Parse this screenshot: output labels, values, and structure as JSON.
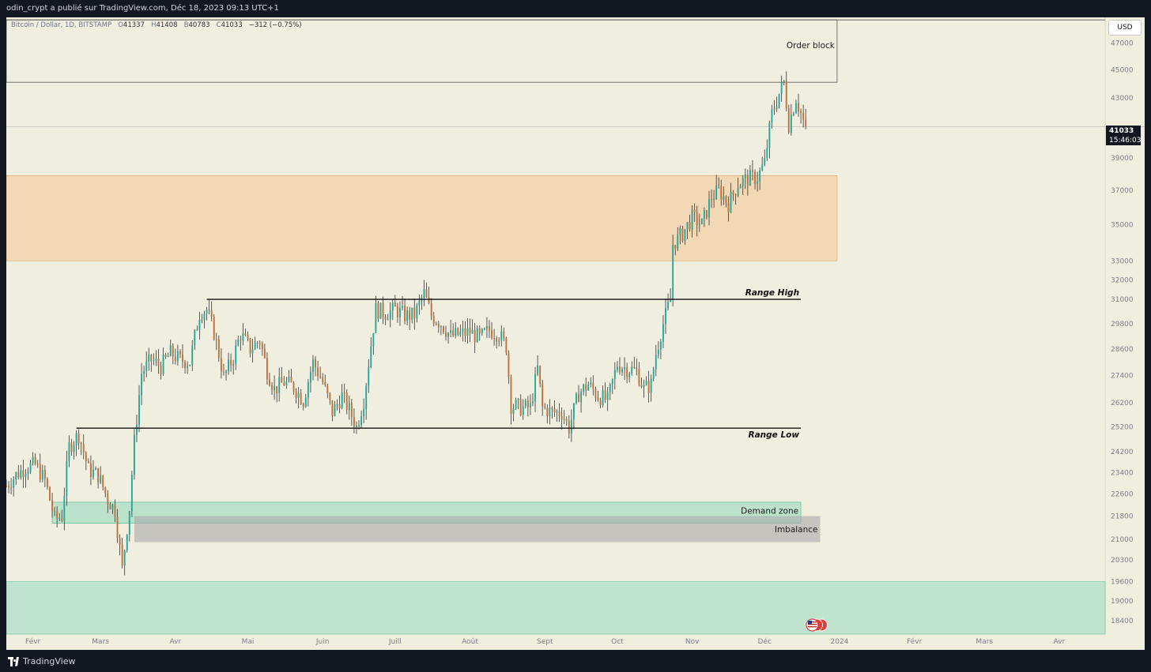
{
  "header": {
    "published_by": "odin_crypt a publié sur TradingView.com, Déc 18, 2023 09:13 UTC+1"
  },
  "footer": {
    "brand": "TradingView"
  },
  "instrument": {
    "name": "Bitcoin / Dollar, 1D, BITSTAMP",
    "o_label": "O",
    "o": "41337",
    "h_label": "H",
    "h": "41408",
    "b_label": "B",
    "b": "40783",
    "c_label": "C",
    "c": "41033",
    "change": "−312 (−0.75%)"
  },
  "currency": "USD",
  "last_price": {
    "price": "41033",
    "countdown": "15:46:03"
  },
  "colors": {
    "bull": "#26a69a",
    "bear": "#c0703a",
    "background": "#f0eedf",
    "order_zone": "#f5c99a",
    "demand_zone": "#9fdcc1",
    "imbalance": "#a8a8a8"
  },
  "chart_data": {
    "type": "candlestick",
    "y_scale": "log",
    "ylim": [
      18000,
      49000
    ],
    "y_ticks": [
      47000,
      45000,
      43000,
      39000,
      37000,
      35000,
      33000,
      32000,
      31000,
      29800,
      28600,
      27400,
      26200,
      25200,
      24200,
      23400,
      22600,
      21800,
      21000,
      20300,
      19600,
      19000,
      18400
    ],
    "y_tick_labels": [
      "47000",
      "45000",
      "43000",
      "39000",
      "37000",
      "35000",
      "33000",
      "32000",
      "31000",
      "29800",
      "28600",
      "27400",
      "26200",
      "25200",
      "24200",
      "23400",
      "22600",
      "21800",
      "21000",
      "20300",
      "19600",
      "19000",
      "18400"
    ],
    "x_range": [
      "2023-01-21",
      "2024-04-20"
    ],
    "x_ticks": [
      {
        "date": "2023-02-01",
        "label": "Févr"
      },
      {
        "date": "2023-03-01",
        "label": "Mars"
      },
      {
        "date": "2023-04-01",
        "label": "Avr"
      },
      {
        "date": "2023-05-01",
        "label": "Mai"
      },
      {
        "date": "2023-06-01",
        "label": "Juin"
      },
      {
        "date": "2023-07-01",
        "label": "Juill"
      },
      {
        "date": "2023-08-01",
        "label": "Août"
      },
      {
        "date": "2023-09-01",
        "label": "Sept"
      },
      {
        "date": "2023-10-01",
        "label": "Oct"
      },
      {
        "date": "2023-11-01",
        "label": "Nov"
      },
      {
        "date": "2023-12-01",
        "label": "Déc"
      },
      {
        "date": "2024-01-01",
        "label": "2024"
      },
      {
        "date": "2024-02-01",
        "label": "Févr"
      },
      {
        "date": "2024-03-01",
        "label": "Mars"
      },
      {
        "date": "2024-04-01",
        "label": "Avr"
      }
    ],
    "anchors": [
      [
        "2023-01-21",
        22900
      ],
      [
        "2023-01-25",
        23300
      ],
      [
        "2023-01-29",
        23600
      ],
      [
        "2023-02-02",
        23700
      ],
      [
        "2023-02-06",
        23100
      ],
      [
        "2023-02-10",
        21700
      ],
      [
        "2023-02-13",
        21800
      ],
      [
        "2023-02-16",
        24400
      ],
      [
        "2023-02-20",
        24900
      ],
      [
        "2023-02-24",
        23500
      ],
      [
        "2023-02-28",
        23300
      ],
      [
        "2023-03-04",
        22400
      ],
      [
        "2023-03-07",
        22000
      ],
      [
        "2023-03-10",
        20000
      ],
      [
        "2023-03-13",
        22100
      ],
      [
        "2023-03-15",
        24600
      ],
      [
        "2023-03-18",
        27500
      ],
      [
        "2023-03-22",
        28100
      ],
      [
        "2023-03-26",
        27800
      ],
      [
        "2023-03-30",
        28400
      ],
      [
        "2023-04-03",
        28100
      ],
      [
        "2023-04-07",
        28000
      ],
      [
        "2023-04-11",
        30300
      ],
      [
        "2023-04-14",
        30500
      ],
      [
        "2023-04-17",
        29400
      ],
      [
        "2023-04-21",
        27300
      ],
      [
        "2023-04-25",
        28200
      ],
      [
        "2023-04-28",
        29300
      ],
      [
        "2023-05-02",
        28600
      ],
      [
        "2023-05-06",
        29000
      ],
      [
        "2023-05-09",
        27600
      ],
      [
        "2023-05-12",
        26800
      ],
      [
        "2023-05-16",
        27100
      ],
      [
        "2023-05-20",
        26900
      ],
      [
        "2023-05-24",
        26300
      ],
      [
        "2023-05-28",
        28000
      ],
      [
        "2023-06-01",
        27100
      ],
      [
        "2023-06-05",
        25800
      ],
      [
        "2023-06-09",
        26500
      ],
      [
        "2023-06-12",
        25900
      ],
      [
        "2023-06-15",
        25200
      ],
      [
        "2023-06-18",
        26300
      ],
      [
        "2023-06-21",
        28800
      ],
      [
        "2023-06-23",
        30500
      ],
      [
        "2023-06-27",
        30300
      ],
      [
        "2023-07-01",
        30500
      ],
      [
        "2023-07-05",
        30200
      ],
      [
        "2023-07-09",
        30200
      ],
      [
        "2023-07-13",
        31300
      ],
      [
        "2023-07-16",
        30200
      ],
      [
        "2023-07-20",
        29800
      ],
      [
        "2023-07-24",
        29200
      ],
      [
        "2023-07-28",
        29300
      ],
      [
        "2023-08-01",
        29400
      ],
      [
        "2023-08-05",
        29100
      ],
      [
        "2023-08-09",
        29500
      ],
      [
        "2023-08-13",
        29300
      ],
      [
        "2023-08-16",
        28700
      ],
      [
        "2023-08-18",
        26100
      ],
      [
        "2023-08-22",
        26000
      ],
      [
        "2023-08-26",
        26000
      ],
      [
        "2023-08-29",
        27700
      ],
      [
        "2023-08-31",
        26000
      ],
      [
        "2023-09-04",
        25800
      ],
      [
        "2023-09-08",
        25800
      ],
      [
        "2023-09-11",
        25150
      ],
      [
        "2023-09-15",
        26600
      ],
      [
        "2023-09-19",
        27000
      ],
      [
        "2023-09-23",
        26500
      ],
      [
        "2023-09-27",
        26300
      ],
      [
        "2023-10-01",
        27900
      ],
      [
        "2023-10-05",
        27700
      ],
      [
        "2023-10-09",
        27600
      ],
      [
        "2023-10-12",
        26800
      ],
      [
        "2023-10-15",
        27000
      ],
      [
        "2023-10-17",
        28400
      ],
      [
        "2023-10-20",
        29800
      ],
      [
        "2023-10-23",
        31000
      ],
      [
        "2023-10-24",
        33900
      ],
      [
        "2023-10-28",
        34500
      ],
      [
        "2023-11-01",
        35400
      ],
      [
        "2023-11-05",
        35000
      ],
      [
        "2023-11-09",
        36600
      ],
      [
        "2023-11-12",
        37000
      ],
      [
        "2023-11-16",
        36200
      ],
      [
        "2023-11-20",
        37400
      ],
      [
        "2023-11-24",
        37700
      ],
      [
        "2023-11-28",
        37800
      ],
      [
        "2023-12-01",
        38700
      ],
      [
        "2023-12-04",
        41900
      ],
      [
        "2023-12-07",
        43300
      ],
      [
        "2023-12-09",
        44100
      ],
      [
        "2023-12-11",
        41200
      ],
      [
        "2023-12-14",
        43000
      ],
      [
        "2023-12-17",
        41400
      ],
      [
        "2023-12-18",
        41033
      ]
    ],
    "annotations": [
      {
        "label": "Order block",
        "type": "zone",
        "x0": "2023-01-21",
        "x1": "2023-12-31",
        "y0": 44100,
        "y1": 48800
      },
      {
        "label": "",
        "type": "zone",
        "x0": "2023-01-21",
        "x1": "2023-12-31",
        "y0": 33000,
        "y1": 37900
      },
      {
        "label": "Range High",
        "type": "line",
        "x0": "2023-04-14",
        "x1": "2023-12-16",
        "y": 31000
      },
      {
        "label": "Range Low",
        "type": "line",
        "x0": "2023-02-19",
        "x1": "2023-12-16",
        "y": 25150
      },
      {
        "label": "Demand zone",
        "type": "zone",
        "x0": "2023-02-09",
        "x1": "2023-12-16",
        "y0": 21550,
        "y1": 22300
      },
      {
        "label": "Imbalance",
        "type": "zone",
        "x0": "2023-03-15",
        "x1": "2023-12-24",
        "y0": 20900,
        "y1": 21800
      },
      {
        "label": "",
        "type": "zone",
        "x0": "2023-01-21",
        "x1": "2024-04-20",
        "y0": 18000,
        "y1": 19600
      }
    ]
  }
}
